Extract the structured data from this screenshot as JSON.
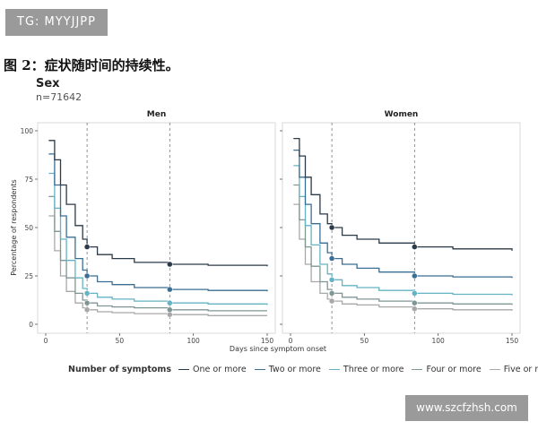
{
  "watermark_top": "TG: MYYJJPP",
  "watermark_bottom": "www.szcfzhsh.com",
  "figure_caption": "图 2：症状随时间的持续性。",
  "subtitle": "Sex",
  "subtitle_n": "n=71642",
  "chart_data": {
    "type": "line",
    "facets": [
      "Men",
      "Women"
    ],
    "xlabel": "Days since symptom onset",
    "ylabel": "Percentage of respondents",
    "xlim": [
      0,
      150
    ],
    "ylim": [
      0,
      100
    ],
    "x_ticks": [
      0,
      50,
      100,
      150
    ],
    "y_ticks": [
      0,
      25,
      50,
      75,
      100
    ],
    "reference_lines_x": [
      28,
      84
    ],
    "legend_title": "Number of symptoms",
    "legend_position": "bottom",
    "series": [
      {
        "name": "One or more",
        "color": "#2b3a48",
        "men": [
          [
            2,
            95
          ],
          [
            6,
            85
          ],
          [
            10,
            72
          ],
          [
            14,
            62
          ],
          [
            20,
            51
          ],
          [
            25,
            44
          ],
          [
            28,
            40
          ],
          [
            35,
            36
          ],
          [
            45,
            34
          ],
          [
            60,
            32
          ],
          [
            84,
            31
          ],
          [
            110,
            30.5
          ],
          [
            150,
            30
          ]
        ],
        "women": [
          [
            2,
            96
          ],
          [
            6,
            87
          ],
          [
            10,
            76
          ],
          [
            14,
            67
          ],
          [
            20,
            57
          ],
          [
            25,
            52
          ],
          [
            28,
            50
          ],
          [
            35,
            46
          ],
          [
            45,
            44
          ],
          [
            60,
            42
          ],
          [
            84,
            40
          ],
          [
            110,
            39
          ],
          [
            150,
            38
          ]
        ],
        "markers_men": [
          [
            28,
            40
          ],
          [
            84,
            31
          ]
        ],
        "markers_women": [
          [
            28,
            50
          ],
          [
            84,
            40
          ]
        ]
      },
      {
        "name": "Two or more",
        "color": "#3a6e93",
        "men": [
          [
            2,
            88
          ],
          [
            6,
            72
          ],
          [
            10,
            56
          ],
          [
            14,
            45
          ],
          [
            20,
            34
          ],
          [
            25,
            28
          ],
          [
            28,
            25
          ],
          [
            35,
            22
          ],
          [
            45,
            20.5
          ],
          [
            60,
            19
          ],
          [
            84,
            18
          ],
          [
            110,
            17.5
          ],
          [
            150,
            17
          ]
        ],
        "women": [
          [
            2,
            90
          ],
          [
            6,
            76
          ],
          [
            10,
            62
          ],
          [
            14,
            52
          ],
          [
            20,
            42
          ],
          [
            25,
            37
          ],
          [
            28,
            34
          ],
          [
            35,
            31
          ],
          [
            45,
            29
          ],
          [
            60,
            27
          ],
          [
            84,
            25
          ],
          [
            110,
            24.5
          ],
          [
            150,
            24
          ]
        ],
        "markers_men": [
          [
            28,
            25
          ],
          [
            84,
            18
          ]
        ],
        "markers_women": [
          [
            28,
            34
          ],
          [
            84,
            25
          ]
        ]
      },
      {
        "name": "Three or more",
        "color": "#63b3c4",
        "men": [
          [
            2,
            78
          ],
          [
            6,
            60
          ],
          [
            10,
            44
          ],
          [
            14,
            33
          ],
          [
            20,
            24
          ],
          [
            25,
            18.5
          ],
          [
            28,
            16
          ],
          [
            35,
            14
          ],
          [
            45,
            13
          ],
          [
            60,
            12
          ],
          [
            84,
            11
          ],
          [
            110,
            10.5
          ],
          [
            150,
            10
          ]
        ],
        "women": [
          [
            2,
            82
          ],
          [
            6,
            66
          ],
          [
            10,
            51
          ],
          [
            14,
            41
          ],
          [
            20,
            31
          ],
          [
            25,
            26
          ],
          [
            28,
            23
          ],
          [
            35,
            20
          ],
          [
            45,
            19
          ],
          [
            60,
            17.5
          ],
          [
            84,
            16
          ],
          [
            110,
            15.5
          ],
          [
            150,
            15
          ]
        ],
        "markers_men": [
          [
            28,
            16
          ],
          [
            84,
            11
          ]
        ],
        "markers_women": [
          [
            28,
            23
          ],
          [
            84,
            16
          ]
        ]
      },
      {
        "name": "Four or more",
        "color": "#7f9695",
        "men": [
          [
            2,
            66
          ],
          [
            6,
            48
          ],
          [
            10,
            33
          ],
          [
            14,
            24
          ],
          [
            20,
            16
          ],
          [
            25,
            12.5
          ],
          [
            28,
            11
          ],
          [
            35,
            9.5
          ],
          [
            45,
            9
          ],
          [
            60,
            8.5
          ],
          [
            84,
            7.5
          ],
          [
            110,
            7
          ],
          [
            150,
            7
          ]
        ],
        "women": [
          [
            2,
            72
          ],
          [
            6,
            54
          ],
          [
            10,
            40
          ],
          [
            14,
            30
          ],
          [
            20,
            22
          ],
          [
            25,
            18
          ],
          [
            28,
            16
          ],
          [
            35,
            14
          ],
          [
            45,
            13
          ],
          [
            60,
            12
          ],
          [
            84,
            11
          ],
          [
            110,
            10.5
          ],
          [
            150,
            10
          ]
        ],
        "markers_men": [
          [
            28,
            11
          ],
          [
            84,
            7.5
          ]
        ],
        "markers_women": [
          [
            28,
            16
          ],
          [
            84,
            11
          ]
        ]
      },
      {
        "name": "Five or more",
        "color": "#a8a8a8",
        "men": [
          [
            2,
            56
          ],
          [
            6,
            38
          ],
          [
            10,
            25
          ],
          [
            14,
            17
          ],
          [
            20,
            11
          ],
          [
            25,
            8.5
          ],
          [
            28,
            7.5
          ],
          [
            35,
            6.5
          ],
          [
            45,
            6
          ],
          [
            60,
            5.5
          ],
          [
            84,
            5
          ],
          [
            110,
            4.5
          ],
          [
            150,
            4.5
          ]
        ],
        "women": [
          [
            2,
            62
          ],
          [
            6,
            44
          ],
          [
            10,
            31
          ],
          [
            14,
            22
          ],
          [
            20,
            16
          ],
          [
            25,
            13
          ],
          [
            28,
            12
          ],
          [
            35,
            10.5
          ],
          [
            45,
            10
          ],
          [
            60,
            9
          ],
          [
            84,
            8
          ],
          [
            110,
            7.5
          ],
          [
            150,
            7
          ]
        ],
        "markers_men": [
          [
            28,
            7.5
          ],
          [
            84,
            5
          ]
        ],
        "markers_women": [
          [
            28,
            12
          ],
          [
            84,
            8
          ]
        ]
      }
    ]
  }
}
